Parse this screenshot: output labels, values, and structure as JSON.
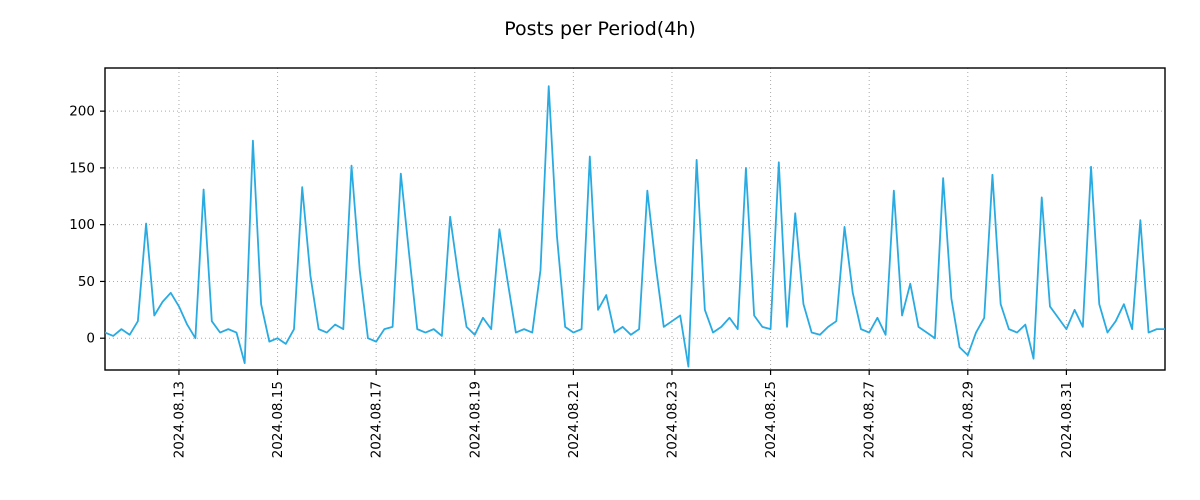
{
  "title": "Posts per Period(4h)",
  "chart_data": {
    "type": "line",
    "title": "Posts per Period(4h)",
    "xlabel": "",
    "ylabel": "",
    "x_start": "2024.08.11 12:00",
    "x_step_hours": 4,
    "values": [
      5,
      2,
      8,
      3,
      15,
      101,
      20,
      32,
      40,
      28,
      12,
      0,
      131,
      15,
      5,
      8,
      5,
      -22,
      174,
      30,
      -3,
      0,
      -5,
      8,
      133,
      55,
      8,
      5,
      12,
      8,
      152,
      60,
      0,
      -3,
      8,
      10,
      145,
      75,
      8,
      5,
      8,
      2,
      107,
      55,
      10,
      3,
      18,
      8,
      96,
      50,
      5,
      8,
      5,
      60,
      222,
      90,
      10,
      5,
      8,
      160,
      25,
      38,
      5,
      10,
      3,
      8,
      130,
      65,
      10,
      15,
      20,
      -25,
      157,
      25,
      5,
      10,
      18,
      8,
      150,
      20,
      10,
      8,
      155,
      10,
      110,
      30,
      5,
      3,
      10,
      15,
      98,
      40,
      8,
      5,
      18,
      3,
      130,
      20,
      48,
      10,
      5,
      0,
      141,
      35,
      -8,
      -15,
      5,
      18,
      144,
      30,
      8,
      5,
      12,
      -18,
      124,
      28,
      18,
      8,
      25,
      10,
      151,
      30,
      5,
      15,
      30,
      8,
      104,
      5,
      8,
      8
    ],
    "x_ticks": [
      {
        "label": "2024.08.13",
        "index": 9
      },
      {
        "label": "2024.08.15",
        "index": 21
      },
      {
        "label": "2024.08.17",
        "index": 33
      },
      {
        "label": "2024.08.19",
        "index": 45
      },
      {
        "label": "2024.08.21",
        "index": 57
      },
      {
        "label": "2024.08.23",
        "index": 69
      },
      {
        "label": "2024.08.25",
        "index": 81
      },
      {
        "label": "2024.08.27",
        "index": 93
      },
      {
        "label": "2024.08.29",
        "index": 105
      },
      {
        "label": "2024.08.31",
        "index": 117
      }
    ],
    "y_ticks": [
      0,
      50,
      100,
      150,
      200
    ],
    "ylim": [
      -28,
      238
    ],
    "legend": "none",
    "grid": true,
    "grid_style": "dotted",
    "line_color": "#29abe2",
    "grid_color": "#aaaaaa",
    "axis_color": "#000000",
    "background": "#ffffff"
  }
}
